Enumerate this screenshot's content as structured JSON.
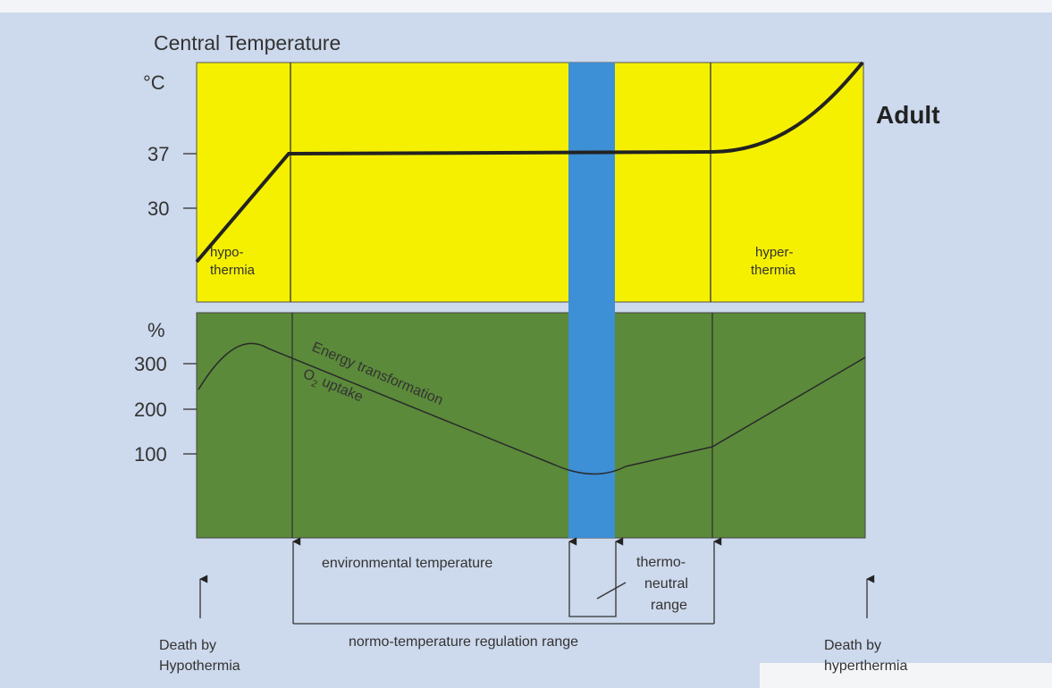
{
  "header": {
    "title": "Central Temperature",
    "unit": "°C",
    "label": "Adult"
  },
  "upper_panel": {
    "ticks": [
      "37",
      "30"
    ],
    "left_label": [
      "hypo-",
      "thermia"
    ],
    "right_label": [
      "hyper-",
      "thermia"
    ]
  },
  "lower_panel": {
    "unit": "%",
    "ticks": [
      "300",
      "200",
      "100"
    ],
    "curve_label_1": "Energy transformation",
    "curve_label_2": [
      "O",
      "2",
      " uptake"
    ]
  },
  "bottom": {
    "environmental": "environmental temperature",
    "thermoneutral": [
      "thermo-",
      "neutral",
      "range"
    ],
    "regulation": "normo-temperature regulation range",
    "death_left": [
      "Death by",
      "Hypothermia"
    ],
    "death_right": [
      "Death by",
      "hyperthermia"
    ]
  }
}
